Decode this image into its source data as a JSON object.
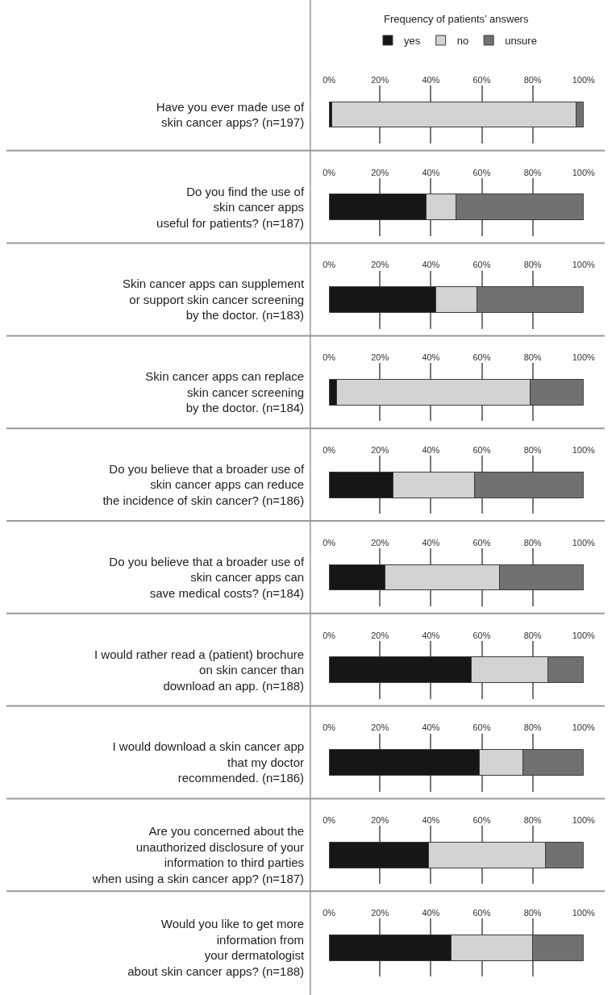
{
  "chart_data": [
    {
      "type": "bar",
      "orientation": "horizontal",
      "stacked": true,
      "title": "Frequency of patients’ answers",
      "legend": "top",
      "grid": "x",
      "categories": [
        "Have you ever made use of\nskin cancer apps? (n=197)"
      ],
      "xlim": [
        0,
        100
      ],
      "xticks": [
        {
          "value": 0,
          "label": "0%"
        },
        {
          "value": 20,
          "label": "20%"
        },
        {
          "value": 40,
          "label": "40%"
        },
        {
          "value": 60,
          "label": "60%"
        },
        {
          "value": 80,
          "label": "80%"
        },
        {
          "value": 100,
          "label": "100%"
        }
      ],
      "series": [
        {
          "name": "yes",
          "color": "#161616",
          "values": [
            1
          ]
        },
        {
          "name": "no",
          "color": "#d3d3d3",
          "values": [
            96
          ]
        },
        {
          "name": "unsure",
          "color": "#717171",
          "values": [
            3
          ]
        }
      ]
    },
    {
      "type": "bar",
      "orientation": "horizontal",
      "stacked": true,
      "grid": "x",
      "categories": [
        "Do you find the use of\nskin cancer apps\nuseful for patients? (n=187)"
      ],
      "xlim": [
        0,
        100
      ],
      "xticks": [
        {
          "value": 0,
          "label": "0%"
        },
        {
          "value": 20,
          "label": "20%"
        },
        {
          "value": 40,
          "label": "40%"
        },
        {
          "value": 60,
          "label": "60%"
        },
        {
          "value": 80,
          "label": "80%"
        },
        {
          "value": 100,
          "label": "100%"
        }
      ],
      "series": [
        {
          "color": "#161616",
          "values": [
            38
          ]
        },
        {
          "color": "#d3d3d3",
          "values": [
            12
          ]
        },
        {
          "color": "#717171",
          "values": [
            50
          ]
        }
      ]
    },
    {
      "type": "bar",
      "orientation": "horizontal",
      "stacked": true,
      "grid": "x",
      "categories": [
        "Skin cancer apps can supplement\nor support skin cancer screening\nby the doctor. (n=183)"
      ],
      "xlim": [
        0,
        100
      ],
      "xticks": [
        {
          "value": 0,
          "label": "0%"
        },
        {
          "value": 20,
          "label": "20%"
        },
        {
          "value": 40,
          "label": "40%"
        },
        {
          "value": 60,
          "label": "60%"
        },
        {
          "value": 80,
          "label": "80%"
        },
        {
          "value": 100,
          "label": "100%"
        }
      ],
      "series": [
        {
          "color": "#161616",
          "values": [
            42
          ]
        },
        {
          "color": "#d3d3d3",
          "values": [
            16
          ]
        },
        {
          "color": "#717171",
          "values": [
            42
          ]
        }
      ]
    },
    {
      "type": "bar",
      "orientation": "horizontal",
      "stacked": true,
      "grid": "x",
      "categories": [
        "Skin cancer apps can replace\nskin cancer screening\nby the doctor. (n=184)"
      ],
      "xlim": [
        0,
        100
      ],
      "xticks": [
        {
          "value": 0,
          "label": "0%"
        },
        {
          "value": 20,
          "label": "20%"
        },
        {
          "value": 40,
          "label": "40%"
        },
        {
          "value": 60,
          "label": "60%"
        },
        {
          "value": 80,
          "label": "80%"
        },
        {
          "value": 100,
          "label": "100%"
        }
      ],
      "series": [
        {
          "color": "#161616",
          "values": [
            3
          ]
        },
        {
          "color": "#d3d3d3",
          "values": [
            76
          ]
        },
        {
          "color": "#717171",
          "values": [
            21
          ]
        }
      ]
    },
    {
      "type": "bar",
      "orientation": "horizontal",
      "stacked": true,
      "grid": "x",
      "categories": [
        "Do you believe that a broader use of\nskin cancer apps can reduce\nthe incidence of skin cancer? (n=186)"
      ],
      "xlim": [
        0,
        100
      ],
      "xticks": [
        {
          "value": 0,
          "label": "0%"
        },
        {
          "value": 20,
          "label": "20%"
        },
        {
          "value": 40,
          "label": "40%"
        },
        {
          "value": 60,
          "label": "60%"
        },
        {
          "value": 80,
          "label": "80%"
        },
        {
          "value": 100,
          "label": "100%"
        }
      ],
      "series": [
        {
          "color": "#161616",
          "values": [
            25
          ]
        },
        {
          "color": "#d3d3d3",
          "values": [
            32
          ]
        },
        {
          "color": "#717171",
          "values": [
            43
          ]
        }
      ]
    },
    {
      "type": "bar",
      "orientation": "horizontal",
      "stacked": true,
      "grid": "x",
      "categories": [
        "Do you believe that a broader use of\nskin cancer apps can\nsave medical costs? (n=184)"
      ],
      "xlim": [
        0,
        100
      ],
      "xticks": [
        {
          "value": 0,
          "label": "0%"
        },
        {
          "value": 20,
          "label": "20%"
        },
        {
          "value": 40,
          "label": "40%"
        },
        {
          "value": 60,
          "label": "60%"
        },
        {
          "value": 80,
          "label": "80%"
        },
        {
          "value": 100,
          "label": "100%"
        }
      ],
      "series": [
        {
          "color": "#161616",
          "values": [
            22
          ]
        },
        {
          "color": "#d3d3d3",
          "values": [
            45
          ]
        },
        {
          "color": "#717171",
          "values": [
            33
          ]
        }
      ]
    },
    {
      "type": "bar",
      "orientation": "horizontal",
      "stacked": true,
      "grid": "x",
      "categories": [
        "I would rather read a (patient) brochure\non skin cancer than\ndownload an app. (n=188)"
      ],
      "xlim": [
        0,
        100
      ],
      "xticks": [
        {
          "value": 0,
          "label": "0%"
        },
        {
          "value": 20,
          "label": "20%"
        },
        {
          "value": 40,
          "label": "40%"
        },
        {
          "value": 60,
          "label": "60%"
        },
        {
          "value": 80,
          "label": "80%"
        },
        {
          "value": 100,
          "label": "100%"
        }
      ],
      "series": [
        {
          "color": "#161616",
          "values": [
            56
          ]
        },
        {
          "color": "#d3d3d3",
          "values": [
            30
          ]
        },
        {
          "color": "#717171",
          "values": [
            14
          ]
        }
      ]
    },
    {
      "type": "bar",
      "orientation": "horizontal",
      "stacked": true,
      "grid": "x",
      "categories": [
        "I would download a skin cancer app\nthat my doctor\nrecommended. (n=186)"
      ],
      "xlim": [
        0,
        100
      ],
      "xticks": [
        {
          "value": 0,
          "label": "0%"
        },
        {
          "value": 20,
          "label": "20%"
        },
        {
          "value": 40,
          "label": "40%"
        },
        {
          "value": 60,
          "label": "60%"
        },
        {
          "value": 80,
          "label": "80%"
        },
        {
          "value": 100,
          "label": "100%"
        }
      ],
      "series": [
        {
          "color": "#161616",
          "values": [
            59
          ]
        },
        {
          "color": "#d3d3d3",
          "values": [
            17
          ]
        },
        {
          "color": "#717171",
          "values": [
            24
          ]
        }
      ]
    },
    {
      "type": "bar",
      "orientation": "horizontal",
      "stacked": true,
      "grid": "x",
      "categories": [
        "Are you concerned about the\nunauthorized disclosure of your\ninformation to third parties\nwhen using a skin cancer app? (n=187)"
      ],
      "xlim": [
        0,
        100
      ],
      "xticks": [
        {
          "value": 0,
          "label": "0%"
        },
        {
          "value": 20,
          "label": "20%"
        },
        {
          "value": 40,
          "label": "40%"
        },
        {
          "value": 60,
          "label": "60%"
        },
        {
          "value": 80,
          "label": "80%"
        },
        {
          "value": 100,
          "label": "100%"
        }
      ],
      "series": [
        {
          "color": "#161616",
          "values": [
            39
          ]
        },
        {
          "color": "#d3d3d3",
          "values": [
            46
          ]
        },
        {
          "color": "#717171",
          "values": [
            15
          ]
        }
      ]
    },
    {
      "type": "bar",
      "orientation": "horizontal",
      "stacked": true,
      "grid": "x",
      "categories": [
        "Would you like to get more\ninformation from\nyour dermatologist\nabout skin cancer apps? (n=188)"
      ],
      "xlim": [
        0,
        100
      ],
      "xticks": [
        {
          "value": 0,
          "label": "0%"
        },
        {
          "value": 20,
          "label": "20%"
        },
        {
          "value": 40,
          "label": "40%"
        },
        {
          "value": 60,
          "label": "60%"
        },
        {
          "value": 80,
          "label": "80%"
        },
        {
          "value": 100,
          "label": "100%"
        }
      ],
      "series": [
        {
          "color": "#161616",
          "values": [
            48
          ]
        },
        {
          "color": "#d3d3d3",
          "values": [
            32
          ]
        },
        {
          "color": "#717171",
          "values": [
            20
          ]
        }
      ]
    }
  ]
}
